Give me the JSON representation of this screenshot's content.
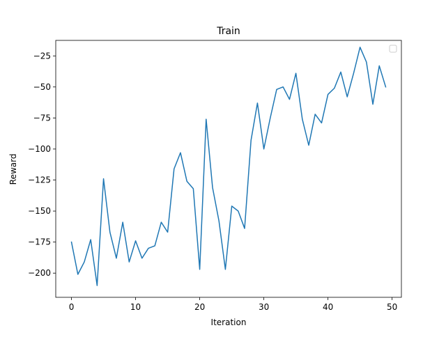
{
  "chart_data": {
    "type": "line",
    "title": "Train",
    "xlabel": "Iteration",
    "ylabel": "Reward",
    "xlim": [
      -2.45,
      51.45
    ],
    "ylim": [
      -219.5,
      -12.5
    ],
    "xticks": [
      0,
      10,
      20,
      30,
      40,
      50
    ],
    "xtick_labels": [
      "0",
      "10",
      "20",
      "30",
      "40",
      "50"
    ],
    "yticks": [
      -200,
      -175,
      -150,
      -125,
      -100,
      -75,
      -50,
      -25
    ],
    "ytick_labels": [
      "−200",
      "−175",
      "−150",
      "−125",
      "−100",
      "−75",
      "−50",
      "−25"
    ],
    "grid": false,
    "legend": {
      "placement": "top-right",
      "entries": []
    },
    "series": [
      {
        "name": "Reward",
        "color": "#1f77b4",
        "x": [
          0,
          1,
          2,
          3,
          4,
          5,
          6,
          7,
          8,
          9,
          10,
          11,
          12,
          13,
          14,
          15,
          16,
          17,
          18,
          19,
          20,
          21,
          22,
          23,
          24,
          25,
          26,
          27,
          28,
          29,
          30,
          31,
          32,
          33,
          34,
          35,
          36,
          37,
          38,
          39,
          40,
          41,
          42,
          43,
          44,
          45,
          46,
          47,
          48,
          49
        ],
        "values": [
          -175,
          -201,
          -191,
          -173,
          -210,
          -124,
          -167,
          -188,
          -159,
          -191,
          -174,
          -188,
          -180,
          -178,
          -159,
          -167,
          -116,
          -103,
          -126,
          -132,
          -197,
          -76,
          -131,
          -158,
          -197,
          -146,
          -150,
          -164,
          -93,
          -63,
          -100,
          -75,
          -52,
          -50,
          -60,
          -39,
          -76,
          -97,
          -72,
          -79,
          -56,
          -51,
          -38,
          -58,
          -39,
          -18,
          -30,
          -64,
          -33,
          -50
        ]
      }
    ]
  }
}
